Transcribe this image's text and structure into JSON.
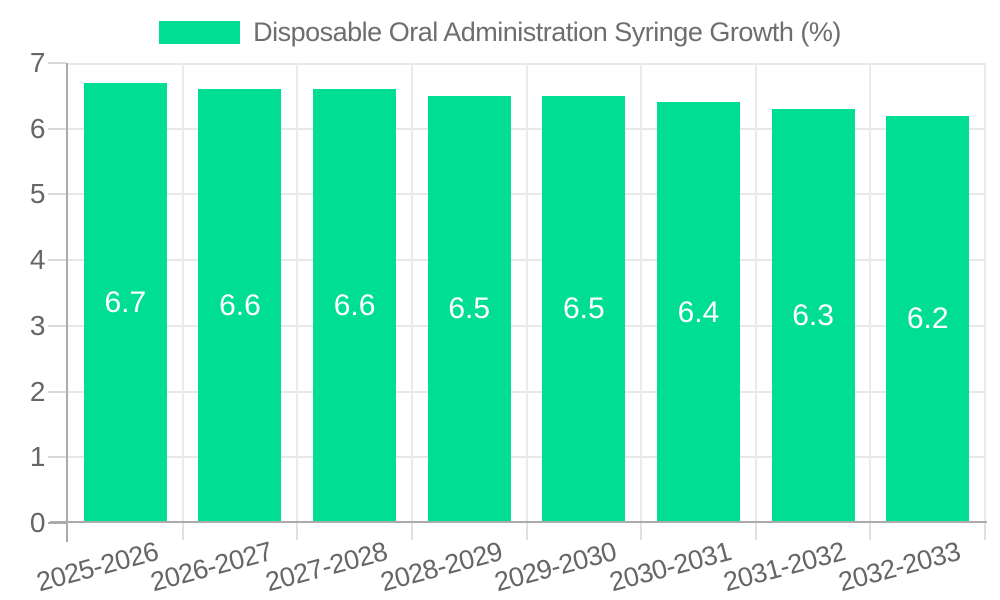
{
  "legend": {
    "label": "Disposable Oral Administration Syringe Growth (%)"
  },
  "colors": {
    "bar": "#00DE94",
    "bar_label": "#ffffff",
    "axis_text": "#666666",
    "gridline": "#e8e8e8",
    "axis_line": "#ababab"
  },
  "chart_data": {
    "type": "bar",
    "title": "Disposable Oral Administration Syringe Growth (%)",
    "categories": [
      "2025-2026",
      "2026-2027",
      "2027-2028",
      "2028-2029",
      "2029-2030",
      "2030-2031",
      "2031-2032",
      "2032-2033"
    ],
    "series": [
      {
        "name": "Disposable Oral Administration Syringe Growth (%)",
        "values": [
          6.7,
          6.6,
          6.6,
          6.5,
          6.5,
          6.4,
          6.3,
          6.2
        ]
      }
    ],
    "values": [
      6.7,
      6.6,
      6.6,
      6.5,
      6.5,
      6.4,
      6.3,
      6.2
    ],
    "data_labels": [
      "6.7",
      "6.6",
      "6.6",
      "6.5",
      "6.5",
      "6.4",
      "6.3",
      "6.2"
    ],
    "xlabel": "",
    "ylabel": "",
    "ylim": [
      0,
      7
    ],
    "yticks": [
      "0",
      "1",
      "2",
      "3",
      "4",
      "5",
      "6",
      "7"
    ],
    "grid": true,
    "legend_position": "top",
    "x_label_rotation_deg": -15
  }
}
